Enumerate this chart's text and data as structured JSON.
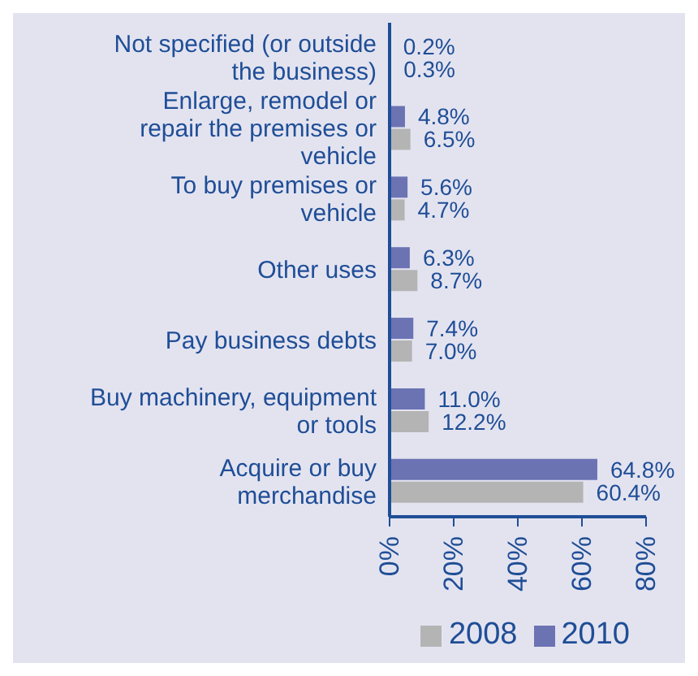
{
  "chart_data": {
    "type": "bar",
    "orientation": "horizontal",
    "categories": [
      "Not specified (or outside the business)",
      "Enlarge, remodel or repair the premises or vehicle",
      "To buy premises or vehicle",
      "Other uses",
      "Pay business debts",
      "Buy machinery, equipment or tools",
      "Acquire or buy merchandise"
    ],
    "series": [
      {
        "name": "2010",
        "color": "#6b73b3",
        "values": [
          0.2,
          4.8,
          5.6,
          6.3,
          7.4,
          11.0,
          64.8
        ],
        "value_labels": [
          "0.2%",
          "4.8%",
          "5.6%",
          "6.3%",
          "7.4%",
          "11.0%",
          "64.8%"
        ]
      },
      {
        "name": "2008",
        "color": "#b4b4b4",
        "values": [
          0.3,
          6.5,
          4.7,
          8.7,
          7.0,
          12.2,
          60.4
        ],
        "value_labels": [
          "0.3%",
          "6.5%",
          "4.7%",
          "8.7%",
          "7.0%",
          "12.2%",
          "60.4%"
        ]
      }
    ],
    "xlim": [
      0,
      80
    ],
    "xticks": [
      {
        "value": 0,
        "label": "0%"
      },
      {
        "value": 20,
        "label": "20%"
      },
      {
        "value": 40,
        "label": "40%"
      },
      {
        "value": 60,
        "label": "60%"
      },
      {
        "value": 80,
        "label": "80%"
      }
    ],
    "legend": "bottom"
  }
}
